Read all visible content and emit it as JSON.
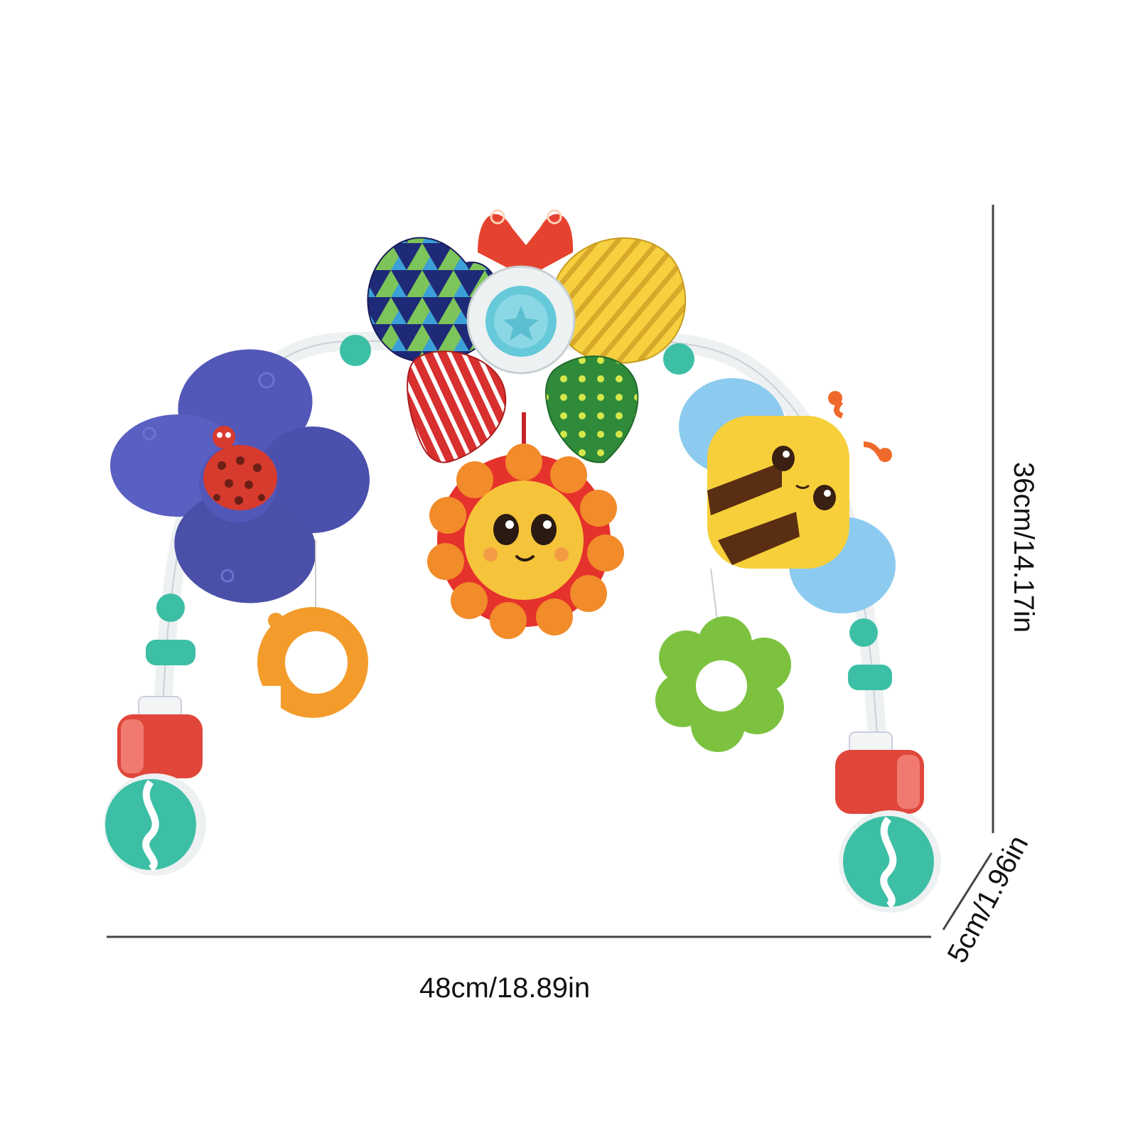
{
  "dimensions": {
    "width": "48cm/18.89in",
    "height": "36cm/14.17in",
    "depth": "5cm/1.96in"
  },
  "colors": {
    "line": "#444444",
    "arch": "#eef1f2",
    "teal": "#3dbfa5",
    "purple": "#5257b8",
    "red": "#e0463a",
    "orange": "#f39c2b",
    "yellow": "#f4c93a",
    "green": "#7cc23f",
    "blue": "#8ccbef",
    "navy": "#1e2a78",
    "darkgreen": "#2f8a3a"
  }
}
